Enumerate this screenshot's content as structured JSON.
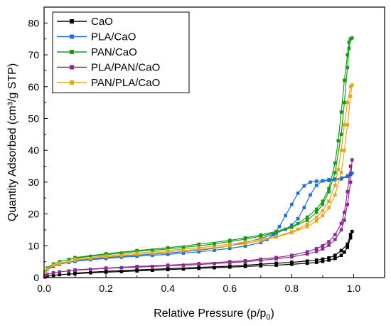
{
  "chart_data": {
    "type": "line",
    "title": "",
    "xlabel": "Relative Pressure (p/p",
    "xlabel_subscript": "0",
    "xlabel_suffix": ")",
    "ylabel": "Quantity Adsorbed (cm³/g STP)",
    "xlim": [
      0.0,
      1.1
    ],
    "ylim": [
      0,
      85
    ],
    "x_ticks": [
      "0.0",
      "0.2",
      "0.4",
      "0.6",
      "0.8",
      "1.0"
    ],
    "x_tick_values": [
      0.0,
      0.2,
      0.4,
      0.6,
      0.8,
      1.0
    ],
    "y_ticks": [
      "0",
      "10",
      "20",
      "30",
      "40",
      "50",
      "60",
      "70",
      "80"
    ],
    "y_tick_values": [
      0,
      10,
      20,
      30,
      40,
      50,
      60,
      70,
      80
    ],
    "grid": false,
    "legend_position": "top-left",
    "series": [
      {
        "name": "CaO",
        "color": "#000000",
        "adsorption": [
          [
            0.003,
            0.2
          ],
          [
            0.01,
            0.4
          ],
          [
            0.03,
            0.7
          ],
          [
            0.05,
            0.9
          ],
          [
            0.08,
            1.1
          ],
          [
            0.1,
            1.2
          ],
          [
            0.15,
            1.5
          ],
          [
            0.2,
            1.7
          ],
          [
            0.25,
            1.9
          ],
          [
            0.3,
            2.1
          ],
          [
            0.35,
            2.3
          ],
          [
            0.4,
            2.5
          ],
          [
            0.45,
            2.7
          ],
          [
            0.5,
            2.9
          ],
          [
            0.55,
            3.1
          ],
          [
            0.6,
            3.3
          ],
          [
            0.65,
            3.5
          ],
          [
            0.7,
            3.7
          ],
          [
            0.75,
            3.9
          ],
          [
            0.8,
            4.2
          ],
          [
            0.85,
            4.5
          ],
          [
            0.88,
            4.8
          ],
          [
            0.9,
            5.1
          ],
          [
            0.92,
            5.5
          ],
          [
            0.94,
            6.0
          ],
          [
            0.96,
            7.0
          ],
          [
            0.97,
            8.0
          ],
          [
            0.98,
            9.5
          ],
          [
            0.99,
            12.5
          ],
          [
            0.995,
            14.5
          ]
        ],
        "desorption": [
          [
            0.99,
            13.5
          ],
          [
            0.98,
            10.5
          ],
          [
            0.96,
            8.5
          ],
          [
            0.94,
            7.0
          ],
          [
            0.92,
            6.2
          ],
          [
            0.9,
            5.8
          ],
          [
            0.88,
            5.5
          ],
          [
            0.85,
            5.2
          ],
          [
            0.8,
            4.8
          ],
          [
            0.75,
            4.5
          ],
          [
            0.7,
            4.2
          ],
          [
            0.65,
            3.9
          ],
          [
            0.6,
            3.6
          ],
          [
            0.5,
            3.2
          ],
          [
            0.4,
            2.8
          ],
          [
            0.3,
            2.4
          ],
          [
            0.2,
            2.0
          ],
          [
            0.1,
            1.4
          ]
        ]
      },
      {
        "name": "PLA/CaO",
        "color": "#1f6fd6",
        "adsorption": [
          [
            0.003,
            1.5
          ],
          [
            0.01,
            2.5
          ],
          [
            0.03,
            3.5
          ],
          [
            0.05,
            4.2
          ],
          [
            0.08,
            4.8
          ],
          [
            0.1,
            5.1
          ],
          [
            0.15,
            5.6
          ],
          [
            0.2,
            6.0
          ],
          [
            0.25,
            6.4
          ],
          [
            0.3,
            6.7
          ],
          [
            0.35,
            7.0
          ],
          [
            0.4,
            7.3
          ],
          [
            0.45,
            7.7
          ],
          [
            0.5,
            8.1
          ],
          [
            0.55,
            8.6
          ],
          [
            0.6,
            9.2
          ],
          [
            0.65,
            9.9
          ],
          [
            0.7,
            11.0
          ],
          [
            0.72,
            12.0
          ],
          [
            0.74,
            13.5
          ],
          [
            0.76,
            16.0
          ],
          [
            0.78,
            19.5
          ],
          [
            0.8,
            23.0
          ],
          [
            0.82,
            26.5
          ],
          [
            0.84,
            28.8
          ],
          [
            0.86,
            30.0
          ],
          [
            0.88,
            30.3
          ],
          [
            0.9,
            30.4
          ],
          [
            0.92,
            30.5
          ],
          [
            0.94,
            30.7
          ],
          [
            0.96,
            31.0
          ],
          [
            0.98,
            31.8
          ],
          [
            0.99,
            32.4
          ],
          [
            0.995,
            32.8
          ]
        ],
        "desorption": [
          [
            0.99,
            32.6
          ],
          [
            0.98,
            32.0
          ],
          [
            0.96,
            31.3
          ],
          [
            0.94,
            31.0
          ],
          [
            0.92,
            30.8
          ],
          [
            0.9,
            30.4
          ],
          [
            0.88,
            29.0
          ],
          [
            0.86,
            26.0
          ],
          [
            0.84,
            22.0
          ],
          [
            0.82,
            18.5
          ],
          [
            0.8,
            16.5
          ],
          [
            0.78,
            15.2
          ],
          [
            0.75,
            14.0
          ],
          [
            0.7,
            12.3
          ],
          [
            0.65,
            11.0
          ],
          [
            0.6,
            10.0
          ],
          [
            0.55,
            9.2
          ],
          [
            0.5,
            8.6
          ],
          [
            0.4,
            7.7
          ],
          [
            0.3,
            7.0
          ],
          [
            0.2,
            6.3
          ],
          [
            0.1,
            5.3
          ]
        ]
      },
      {
        "name": "PAN/CaO",
        "color": "#1a9a1a",
        "adsorption": [
          [
            0.003,
            1.8
          ],
          [
            0.01,
            3.0
          ],
          [
            0.03,
            4.3
          ],
          [
            0.05,
            5.0
          ],
          [
            0.08,
            5.7
          ],
          [
            0.1,
            6.1
          ],
          [
            0.15,
            6.7
          ],
          [
            0.2,
            7.2
          ],
          [
            0.25,
            7.7
          ],
          [
            0.3,
            8.2
          ],
          [
            0.35,
            8.6
          ],
          [
            0.4,
            9.0
          ],
          [
            0.45,
            9.5
          ],
          [
            0.5,
            10.0
          ],
          [
            0.55,
            10.6
          ],
          [
            0.6,
            11.3
          ],
          [
            0.65,
            12.1
          ],
          [
            0.7,
            13.0
          ],
          [
            0.75,
            14.2
          ],
          [
            0.8,
            15.8
          ],
          [
            0.85,
            18.0
          ],
          [
            0.88,
            20.5
          ],
          [
            0.9,
            23.0
          ],
          [
            0.92,
            27.0
          ],
          [
            0.94,
            33.0
          ],
          [
            0.96,
            45.0
          ],
          [
            0.97,
            55.0
          ],
          [
            0.98,
            66.0
          ],
          [
            0.985,
            72.0
          ],
          [
            0.99,
            75.0
          ],
          [
            0.995,
            75.3
          ]
        ],
        "desorption": [
          [
            0.99,
            75.0
          ],
          [
            0.985,
            74.0
          ],
          [
            0.98,
            70.0
          ],
          [
            0.97,
            62.0
          ],
          [
            0.96,
            52.0
          ],
          [
            0.95,
            43.0
          ],
          [
            0.94,
            36.0
          ],
          [
            0.92,
            28.0
          ],
          [
            0.9,
            24.0
          ],
          [
            0.88,
            21.5
          ],
          [
            0.85,
            19.0
          ],
          [
            0.82,
            17.0
          ],
          [
            0.8,
            16.0
          ],
          [
            0.75,
            14.5
          ],
          [
            0.7,
            13.4
          ],
          [
            0.65,
            12.5
          ],
          [
            0.6,
            11.7
          ],
          [
            0.5,
            10.5
          ],
          [
            0.4,
            9.4
          ],
          [
            0.3,
            8.5
          ],
          [
            0.2,
            7.5
          ],
          [
            0.1,
            6.3
          ]
        ]
      },
      {
        "name": "PLA/PAN/CaO",
        "color": "#8b2a8b",
        "adsorption": [
          [
            0.003,
            0.6
          ],
          [
            0.01,
            1.0
          ],
          [
            0.03,
            1.5
          ],
          [
            0.05,
            1.8
          ],
          [
            0.08,
            2.1
          ],
          [
            0.1,
            2.3
          ],
          [
            0.15,
            2.6
          ],
          [
            0.2,
            2.9
          ],
          [
            0.25,
            3.1
          ],
          [
            0.3,
            3.3
          ],
          [
            0.35,
            3.5
          ],
          [
            0.4,
            3.7
          ],
          [
            0.45,
            3.9
          ],
          [
            0.5,
            4.1
          ],
          [
            0.55,
            4.4
          ],
          [
            0.6,
            4.7
          ],
          [
            0.65,
            5.0
          ],
          [
            0.7,
            5.4
          ],
          [
            0.75,
            5.9
          ],
          [
            0.8,
            6.5
          ],
          [
            0.85,
            7.4
          ],
          [
            0.88,
            8.2
          ],
          [
            0.9,
            9.0
          ],
          [
            0.92,
            10.2
          ],
          [
            0.94,
            12.0
          ],
          [
            0.96,
            15.0
          ],
          [
            0.97,
            18.0
          ],
          [
            0.98,
            23.0
          ],
          [
            0.99,
            30.0
          ],
          [
            0.995,
            37.0
          ]
        ],
        "desorption": [
          [
            0.99,
            35.0
          ],
          [
            0.98,
            27.0
          ],
          [
            0.97,
            20.5
          ],
          [
            0.96,
            17.0
          ],
          [
            0.94,
            13.5
          ],
          [
            0.92,
            11.3
          ],
          [
            0.9,
            10.0
          ],
          [
            0.88,
            9.1
          ],
          [
            0.85,
            8.1
          ],
          [
            0.8,
            7.0
          ],
          [
            0.75,
            6.3
          ],
          [
            0.7,
            5.8
          ],
          [
            0.65,
            5.3
          ],
          [
            0.6,
            5.0
          ],
          [
            0.5,
            4.4
          ],
          [
            0.4,
            3.9
          ],
          [
            0.3,
            3.5
          ],
          [
            0.2,
            3.0
          ],
          [
            0.1,
            2.4
          ]
        ]
      },
      {
        "name": "PAN/PLA/CaO",
        "color": "#e0a81a",
        "adsorption": [
          [
            0.003,
            1.6
          ],
          [
            0.01,
            2.7
          ],
          [
            0.03,
            3.9
          ],
          [
            0.05,
            4.5
          ],
          [
            0.08,
            5.1
          ],
          [
            0.1,
            5.5
          ],
          [
            0.15,
            6.0
          ],
          [
            0.2,
            6.5
          ],
          [
            0.25,
            6.9
          ],
          [
            0.3,
            7.3
          ],
          [
            0.35,
            7.7
          ],
          [
            0.4,
            8.1
          ],
          [
            0.45,
            8.5
          ],
          [
            0.5,
            8.9
          ],
          [
            0.55,
            9.4
          ],
          [
            0.6,
            10.0
          ],
          [
            0.65,
            10.7
          ],
          [
            0.7,
            11.6
          ],
          [
            0.75,
            12.7
          ],
          [
            0.8,
            14.1
          ],
          [
            0.85,
            16.0
          ],
          [
            0.88,
            17.8
          ],
          [
            0.9,
            19.5
          ],
          [
            0.92,
            22.0
          ],
          [
            0.94,
            26.0
          ],
          [
            0.96,
            33.0
          ],
          [
            0.97,
            40.0
          ],
          [
            0.98,
            48.0
          ],
          [
            0.99,
            57.0
          ],
          [
            0.995,
            60.5
          ]
        ],
        "desorption": [
          [
            0.99,
            60.0
          ],
          [
            0.98,
            55.0
          ],
          [
            0.97,
            48.0
          ],
          [
            0.96,
            40.0
          ],
          [
            0.95,
            34.0
          ],
          [
            0.94,
            29.0
          ],
          [
            0.92,
            24.0
          ],
          [
            0.9,
            21.0
          ],
          [
            0.88,
            18.9
          ],
          [
            0.85,
            16.8
          ],
          [
            0.82,
            15.2
          ],
          [
            0.8,
            14.4
          ],
          [
            0.75,
            12.9
          ],
          [
            0.7,
            12.0
          ],
          [
            0.65,
            11.2
          ],
          [
            0.6,
            10.5
          ],
          [
            0.5,
            9.4
          ],
          [
            0.4,
            8.5
          ],
          [
            0.3,
            7.7
          ],
          [
            0.2,
            6.8
          ],
          [
            0.1,
            5.8
          ]
        ]
      }
    ]
  }
}
